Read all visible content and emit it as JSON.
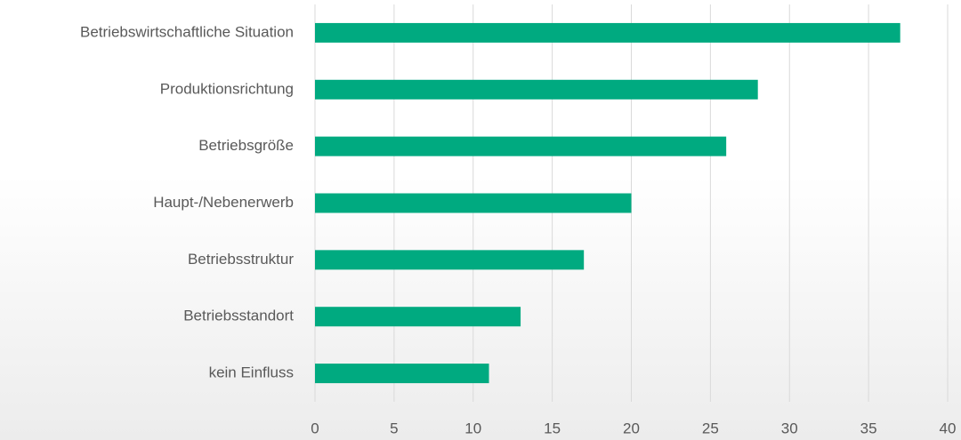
{
  "chart_data": {
    "type": "barh",
    "categories": [
      "Betriebswirtschaftliche Situation",
      "Produktionsrichtung",
      "Betriebsgröße",
      "Haupt-/Nebenerwerb",
      "Betriebsstruktur",
      "Betriebsstandort",
      "kein Einfluss"
    ],
    "values": [
      37,
      28,
      26,
      20,
      17,
      13,
      11
    ],
    "color": "#00aa80",
    "xlim": [
      0,
      40
    ],
    "xticks": [
      0,
      5,
      10,
      15,
      20,
      25,
      30,
      35,
      40
    ],
    "grid": true
  }
}
